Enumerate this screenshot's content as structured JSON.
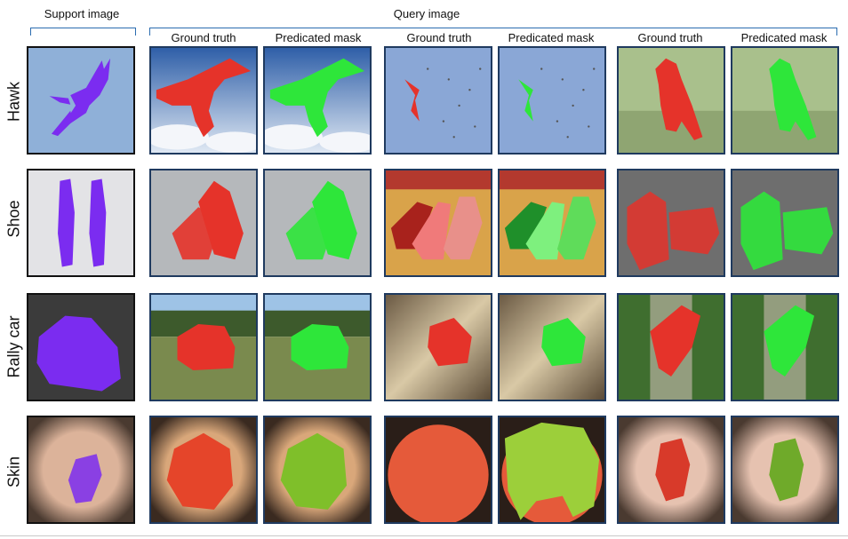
{
  "headers": {
    "support": "Support image",
    "query": "Query image",
    "ground_truth": "Ground truth",
    "predicted": "Predicated mask"
  },
  "rows": [
    {
      "label": "Hawk"
    },
    {
      "label": "Shoe"
    },
    {
      "label": "Rally car"
    },
    {
      "label": "Skin"
    }
  ],
  "colors": {
    "support_mask": "#7b2cf0",
    "ground_truth_mask": "#e5332a",
    "predicted_mask": "#2ee63a",
    "tile_border": "#1f3a5f",
    "bracket": "#2b6cb0"
  }
}
